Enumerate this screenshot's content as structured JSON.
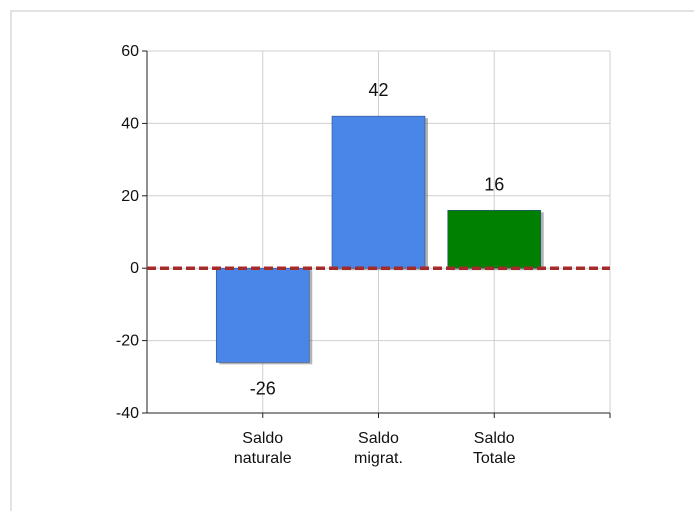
{
  "chart_data": {
    "type": "bar",
    "categories": [
      [
        "Saldo",
        "naturale"
      ],
      [
        "Saldo",
        "migrat."
      ],
      [
        "Saldo",
        "Totale"
      ]
    ],
    "values": [
      -26,
      42,
      16
    ],
    "data_labels": [
      "-26",
      "42",
      "16"
    ],
    "bar_colors": [
      "#4a86e8",
      "#4a86e8",
      "#008000"
    ],
    "baseline_color": "#a52a2a",
    "ylim": [
      -40,
      60
    ],
    "yticks": [
      60,
      40,
      20,
      0,
      -20,
      -40
    ],
    "grid": true,
    "title": "",
    "xlabel": "",
    "ylabel": ""
  }
}
